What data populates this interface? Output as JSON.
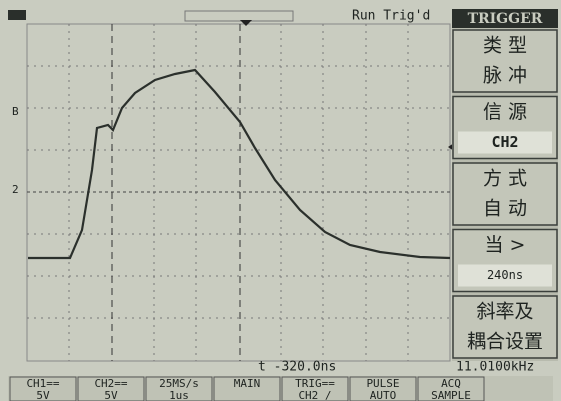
{
  "top_bar": {
    "status": "Run Trig'd"
  },
  "markers": {
    "ch1": "B",
    "ch2": "2"
  },
  "menu": {
    "title": "TRIGGER",
    "items": [
      {
        "label": "类 型",
        "value": "脉 冲"
      },
      {
        "label": "信 源",
        "value": "CH2"
      },
      {
        "label": "方 式",
        "value": "自 动"
      },
      {
        "label": "当 >",
        "value": "240ns"
      },
      {
        "label": "斜率及",
        "value": "耦合设置"
      }
    ]
  },
  "readouts": {
    "time_offset": "t -320.0ns",
    "frequency": "11.0100kHz"
  },
  "status_bar": [
    {
      "line1": "CH1==",
      "line2": "5V"
    },
    {
      "line1": "CH2==",
      "line2": "5V"
    },
    {
      "line1": "25MS/s",
      "line2": "1us"
    },
    {
      "line1": "MAIN",
      "line2": ""
    },
    {
      "line1": "TRIG==",
      "line2": "CH2 /"
    },
    {
      "line1": "PULSE",
      "line2": "AUTO"
    },
    {
      "line1": "ACQ",
      "line2": "SAMPLE"
    }
  ]
}
